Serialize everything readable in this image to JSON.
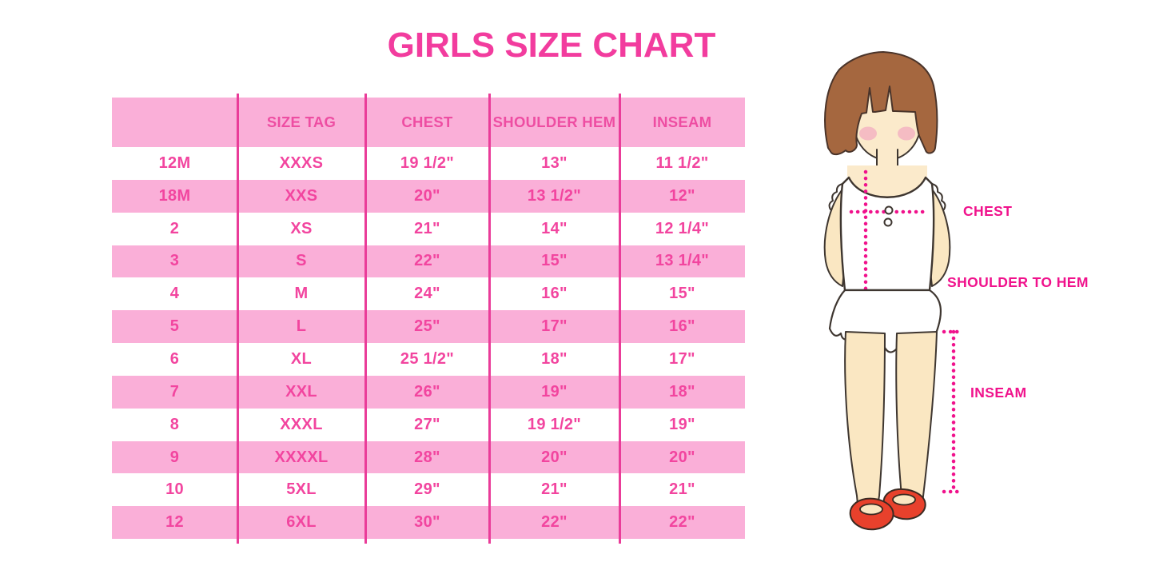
{
  "page": {
    "title": "GIRLS SIZE CHART",
    "background": "#FFFFFF"
  },
  "colors": {
    "title_pink": "#F23C9E",
    "band_pink": "#FAAFD8",
    "divider_pink": "#EA3C99",
    "table_text_pink": "#F2459F",
    "label_magenta": "#F0128C",
    "hair_brown": "#A5673F",
    "skin": "#FAE7C2",
    "blush": "#F3ACC0",
    "shoe_red": "#E8412C",
    "outline": "#3E3630"
  },
  "chart_data": {
    "type": "table",
    "title": "GIRLS SIZE CHART",
    "columns": [
      "",
      "SIZE TAG",
      "CHEST",
      "SHOULDER HEM",
      "INSEAM"
    ],
    "rows": [
      [
        "12M",
        "XXXS",
        "19 1/2\"",
        "13\"",
        "11 1/2\""
      ],
      [
        "18M",
        "XXS",
        "20\"",
        "13 1/2\"",
        "12\""
      ],
      [
        "2",
        "XS",
        "21\"",
        "14\"",
        "12 1/4\""
      ],
      [
        "3",
        "S",
        "22\"",
        "15\"",
        "13 1/4\""
      ],
      [
        "4",
        "M",
        "24\"",
        "16\"",
        "15\""
      ],
      [
        "5",
        "L",
        "25\"",
        "17\"",
        "16\""
      ],
      [
        "6",
        "XL",
        "25 1/2\"",
        "18\"",
        "17\""
      ],
      [
        "7",
        "XXL",
        "26\"",
        "19\"",
        "18\""
      ],
      [
        "8",
        "XXXL",
        "27\"",
        "19 1/2\"",
        "19\""
      ],
      [
        "9",
        "XXXXL",
        "28\"",
        "20\"",
        "20\""
      ],
      [
        "10",
        "5XL",
        "29\"",
        "21\"",
        "21\""
      ],
      [
        "12",
        "6XL",
        "30\"",
        "22\"",
        "22\""
      ]
    ],
    "stripe_pattern": "header pink, then data rows alternate white/pink starting with white",
    "grid": "vertical magenta column dividers only, no horizontal borders"
  },
  "figure": {
    "labels": {
      "chest": "CHEST",
      "shoulder_to_hem": "SHOULDER TO HEM",
      "inseam": "INSEAM"
    }
  }
}
